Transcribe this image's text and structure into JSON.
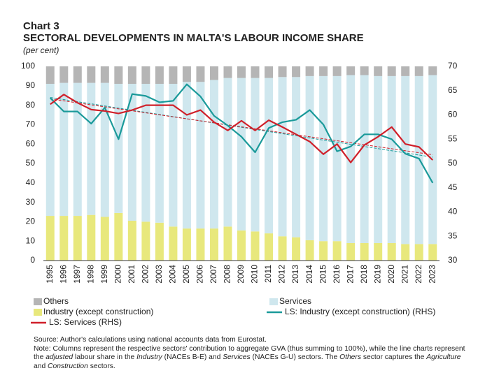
{
  "chart_data": {
    "type": "bar_line",
    "chart_number": "Chart 3",
    "title": "SECTORAL DEVELOPMENTS IN MALTA'S LABOUR INCOME SHARE",
    "subtitle": "(per cent)",
    "categories": [
      "1995",
      "1996",
      "1997",
      "1998",
      "1999",
      "2000",
      "2001",
      "2002",
      "2003",
      "2004",
      "2005",
      "2006",
      "2007",
      "2008",
      "2009",
      "2010",
      "2011",
      "2012",
      "2013",
      "2014",
      "2015",
      "2016",
      "2017",
      "2018",
      "2019",
      "2020",
      "2021",
      "2022",
      "2023"
    ],
    "series": [
      {
        "name": "Industry (except construction)",
        "color": "#e8e87c",
        "kind": "bar",
        "values": [
          23,
          23,
          23,
          23.5,
          22.5,
          24.5,
          20.5,
          20,
          19.5,
          17.5,
          16.5,
          16.5,
          16.5,
          17.5,
          15.5,
          15,
          14,
          12.5,
          12,
          10.5,
          10,
          10,
          9,
          9,
          9,
          9,
          8.5,
          8.5,
          8.5
        ]
      },
      {
        "name": "Services",
        "color": "#cfe7ee",
        "kind": "bar",
        "values": [
          68,
          68.5,
          68.5,
          68,
          69,
          66.5,
          70.5,
          71,
          71.5,
          73.5,
          75.5,
          75.5,
          76.5,
          76.5,
          78.5,
          79,
          80,
          82,
          82.5,
          84.5,
          85,
          85,
          86.5,
          86.5,
          86,
          86,
          86.5,
          86.5,
          87
        ]
      },
      {
        "name": "Others",
        "color": "#b5b5b5",
        "kind": "bar",
        "values": [
          9,
          8.5,
          8.5,
          8.5,
          8.5,
          9,
          9,
          9,
          9,
          9,
          8,
          8,
          7,
          6,
          6,
          6,
          6,
          5.5,
          5.5,
          5,
          5,
          5,
          4.5,
          4.5,
          5,
          5,
          5,
          5,
          4.5
        ]
      },
      {
        "name": "LS: Industry (except construction) (RHS)",
        "color": "#1a9a9a",
        "kind": "line",
        "axis": "y2",
        "values": [
          63.5,
          60.7,
          60.7,
          58.2,
          61.5,
          55,
          64.3,
          63.9,
          62.6,
          62.9,
          66.3,
          63.8,
          59.8,
          57.8,
          55.5,
          52.3,
          57.3,
          58.5,
          59,
          61,
          58,
          52.5,
          53.5,
          56,
          56,
          55,
          52,
          51,
          46
        ]
      },
      {
        "name": "LS: Services (RHS)",
        "color": "#d0202a",
        "kind": "line",
        "axis": "y2",
        "values": [
          62.2,
          64.2,
          62.5,
          61.1,
          60.8,
          60.3,
          61,
          62,
          62,
          62,
          60,
          61,
          58.5,
          56.8,
          58.8,
          56.8,
          58.9,
          57.5,
          56,
          54.5,
          51.9,
          54,
          50.2,
          53.8,
          55.5,
          57.5,
          54,
          53.4,
          50.7
        ]
      }
    ],
    "trend_lines": [
      {
        "color": "#1a9a9a",
        "axis": "y2",
        "values": [
          63.6,
          51.3
        ]
      },
      {
        "color": "#d0202a",
        "axis": "y2",
        "values": [
          63.3,
          51.8
        ]
      }
    ],
    "ylim": [
      0,
      100
    ],
    "yticks": [
      0,
      10,
      20,
      30,
      40,
      50,
      60,
      70,
      80,
      90,
      100
    ],
    "y2lim": [
      30,
      70
    ],
    "y2ticks": [
      30,
      35,
      40,
      45,
      50,
      55,
      60,
      65,
      70
    ],
    "source": "Source: Author's calculations using national accounts data from Eurostat.",
    "note": [
      {
        "text": "Note: Columns represent the respective sectors' contribution to aggregate GVA (thus summing to 100%), while the line charts represent the ",
        "italic": false
      },
      {
        "text": "adjusted",
        "italic": true
      },
      {
        "text": " labour share in the ",
        "italic": false
      },
      {
        "text": "Industry",
        "italic": true
      },
      {
        "text": " (NACEs B-E) and ",
        "italic": false
      },
      {
        "text": "Services",
        "italic": true
      },
      {
        "text": " (NACEs G-U) sectors. The ",
        "italic": false
      },
      {
        "text": "Others",
        "italic": true
      },
      {
        "text": " sector captures the ",
        "italic": false
      },
      {
        "text": "Agriculture",
        "italic": true
      },
      {
        "text": " and ",
        "italic": false
      },
      {
        "text": "Construction",
        "italic": true
      },
      {
        "text": " sectors.",
        "italic": false
      }
    ]
  }
}
